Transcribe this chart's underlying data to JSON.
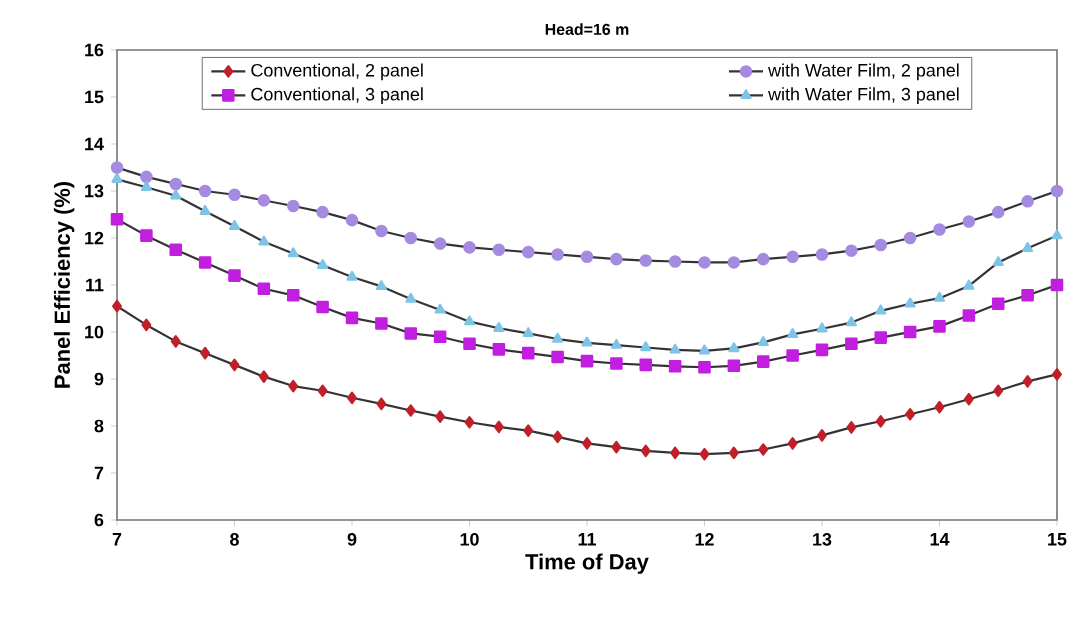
{
  "chart_data": {
    "type": "line",
    "title": "Head=16 m",
    "xlabel": "Time of Day",
    "ylabel": "Panel Efficiency (%)",
    "x": [
      7,
      7.25,
      7.5,
      7.75,
      8,
      8.25,
      8.5,
      8.75,
      9,
      9.25,
      9.5,
      9.75,
      10,
      10.25,
      10.5,
      10.75,
      11,
      11.25,
      11.5,
      11.75,
      12,
      12.25,
      12.5,
      12.75,
      13,
      13.25,
      13.5,
      13.75,
      14,
      14.25,
      14.5,
      14.75,
      15
    ],
    "series": [
      {
        "name": "Conventional, 2 panel",
        "color": "#c0202a",
        "marker": "diamond",
        "values": [
          10.55,
          10.15,
          9.8,
          9.55,
          9.3,
          9.05,
          8.85,
          8.75,
          8.6,
          8.47,
          8.33,
          8.2,
          8.08,
          7.98,
          7.9,
          7.77,
          7.63,
          7.55,
          7.47,
          7.43,
          7.4,
          7.43,
          7.5,
          7.63,
          7.8,
          7.97,
          8.1,
          8.25,
          8.4,
          8.57,
          8.75,
          8.95,
          9.1
        ]
      },
      {
        "name": "with Water Film, 2 panel",
        "color": "#a58be0",
        "marker": "circle",
        "values": [
          13.5,
          13.3,
          13.15,
          13.0,
          12.92,
          12.8,
          12.68,
          12.55,
          12.38,
          12.15,
          12.0,
          11.88,
          11.8,
          11.75,
          11.7,
          11.65,
          11.6,
          11.55,
          11.52,
          11.5,
          11.48,
          11.48,
          11.55,
          11.6,
          11.65,
          11.73,
          11.85,
          12.0,
          12.18,
          12.35,
          12.55,
          12.78,
          13.0
        ]
      },
      {
        "name": "Conventional, 3 panel",
        "color": "#c21ee0",
        "marker": "square",
        "values": [
          12.4,
          12.05,
          11.75,
          11.48,
          11.2,
          10.92,
          10.78,
          10.53,
          10.3,
          10.18,
          9.97,
          9.9,
          9.75,
          9.63,
          9.55,
          9.47,
          9.38,
          9.33,
          9.3,
          9.27,
          9.25,
          9.28,
          9.37,
          9.5,
          9.62,
          9.75,
          9.88,
          10.0,
          10.12,
          10.35,
          10.6,
          10.78,
          11.0
        ]
      },
      {
        "name": "with Water Film, 3 panel",
        "color": "#7ec4e6",
        "marker": "triangle",
        "values": [
          13.25,
          13.08,
          12.9,
          12.57,
          12.25,
          11.92,
          11.67,
          11.42,
          11.17,
          10.97,
          10.7,
          10.47,
          10.22,
          10.08,
          9.97,
          9.85,
          9.77,
          9.72,
          9.67,
          9.62,
          9.6,
          9.65,
          9.78,
          9.95,
          10.07,
          10.2,
          10.45,
          10.6,
          10.72,
          10.98,
          11.48,
          11.78,
          12.05
        ]
      }
    ],
    "xlim": [
      7,
      15
    ],
    "ylim": [
      6,
      16
    ],
    "xticks": [
      7,
      8,
      9,
      10,
      11,
      12,
      13,
      14,
      15
    ],
    "yticks": [
      6,
      7,
      8,
      9,
      10,
      11,
      12,
      13,
      14,
      15,
      16
    ],
    "grid": false,
    "legend": "top",
    "line_style": "solid"
  }
}
